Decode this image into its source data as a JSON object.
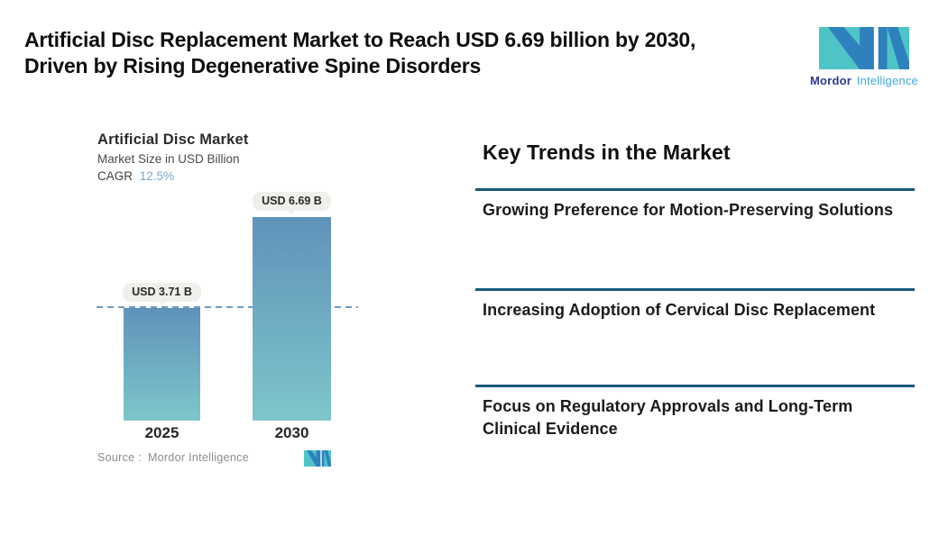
{
  "page": {
    "background": "#ffffff"
  },
  "header": {
    "title_lines": [
      "Artificial Disc Replacement Market to Reach USD 6.69 billion by 2030,",
      "Driven by Rising Degenerative Spine Disorders"
    ]
  },
  "brand": {
    "name_bold": "Mordor",
    "name_light": "Intelligence",
    "colors": {
      "teal": "#4fc4c6",
      "blue": "#2e81bd",
      "navy": "#2b3990",
      "light_blue": "#3fa9d9"
    }
  },
  "chart_data": {
    "type": "bar",
    "title": "Artificial Disc Market",
    "subtitle": "Market Size in USD Billion",
    "cagr_label": "CAGR",
    "cagr_value": "12.5%",
    "categories": [
      "2025",
      "2030"
    ],
    "values": [
      3.71,
      6.69
    ],
    "value_labels": [
      "USD 3.71 B",
      "USD 6.69 B"
    ],
    "ylim": [
      0,
      6.69
    ],
    "grid": "off",
    "legend": "none",
    "reference_line": {
      "value": 3.71,
      "style": "dashed",
      "color": "#6d9dc5"
    },
    "bar_colors": {
      "top": "#6092b9",
      "bottom": "#7ec6cb"
    },
    "source_label": "Source :",
    "source_value": "Mordor Intelligence"
  },
  "trends": {
    "heading": "Key Trends in the Market",
    "divider_color": "#1a5a7d",
    "items": [
      {
        "label": "Growing Preference for Motion-Preserving Solutions"
      },
      {
        "label": "Increasing Adoption of Cervical Disc Replacement"
      },
      {
        "label": "Focus on Regulatory Approvals and Long-Term Clinical Evidence"
      }
    ]
  }
}
